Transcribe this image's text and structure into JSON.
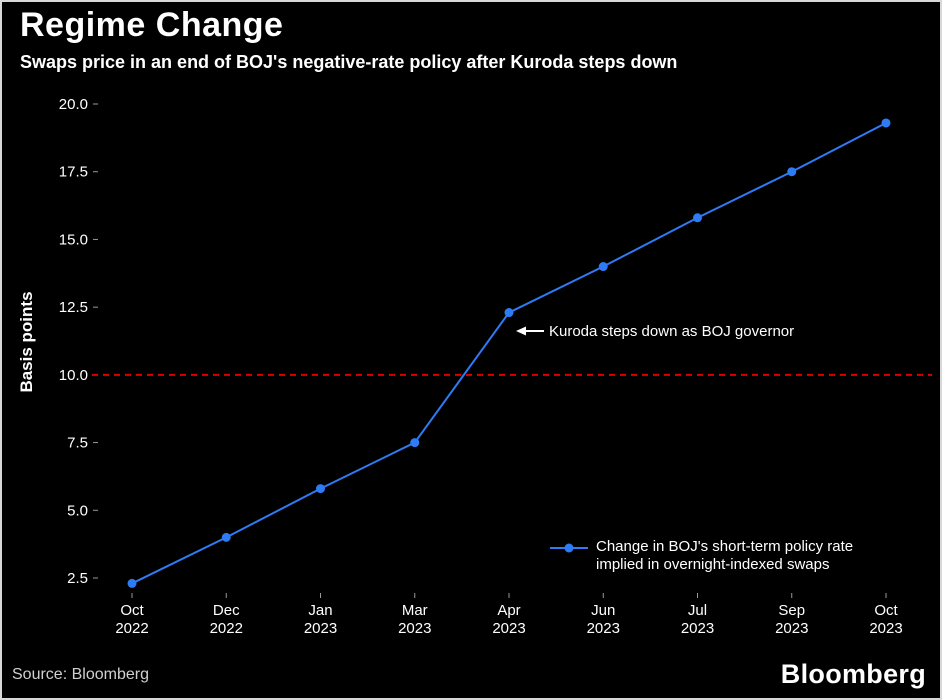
{
  "header": {
    "title": "Regime Change",
    "subtitle": "Swaps price in an end of BOJ's negative-rate policy after Kuroda steps down"
  },
  "chart_data": {
    "type": "line",
    "categories": [
      "Oct 2022",
      "Dec 2022",
      "Jan 2023",
      "Mar 2023",
      "Apr 2023",
      "Jun 2023",
      "Jul 2023",
      "Sep 2023",
      "Oct 2023"
    ],
    "values": [
      2.3,
      4.0,
      5.8,
      7.5,
      12.3,
      14.0,
      15.8,
      17.5,
      19.3
    ],
    "title": "Regime Change",
    "xlabel": "",
    "ylabel": "Basis points",
    "yticks": [
      2.5,
      5.0,
      7.5,
      10.0,
      12.5,
      15.0,
      17.5,
      20.0
    ],
    "ylim": [
      2.5,
      20.0
    ],
    "grid": false,
    "line_color": "#2e7bf6",
    "background_color": "#000000",
    "reference_line": {
      "value": 10.0,
      "color": "#dd0000",
      "style": "dashed"
    },
    "annotation": {
      "text": "Kuroda steps down as BOJ governor",
      "target_category": "Apr 2023",
      "target_value": 12.3
    },
    "legend": {
      "position": "bottom-right",
      "lines": [
        "Change in BOJ's short-term policy rate",
        "implied in overnight-indexed swaps"
      ]
    }
  },
  "footer": {
    "source": "Source: Bloomberg",
    "logo": "Bloomberg"
  }
}
